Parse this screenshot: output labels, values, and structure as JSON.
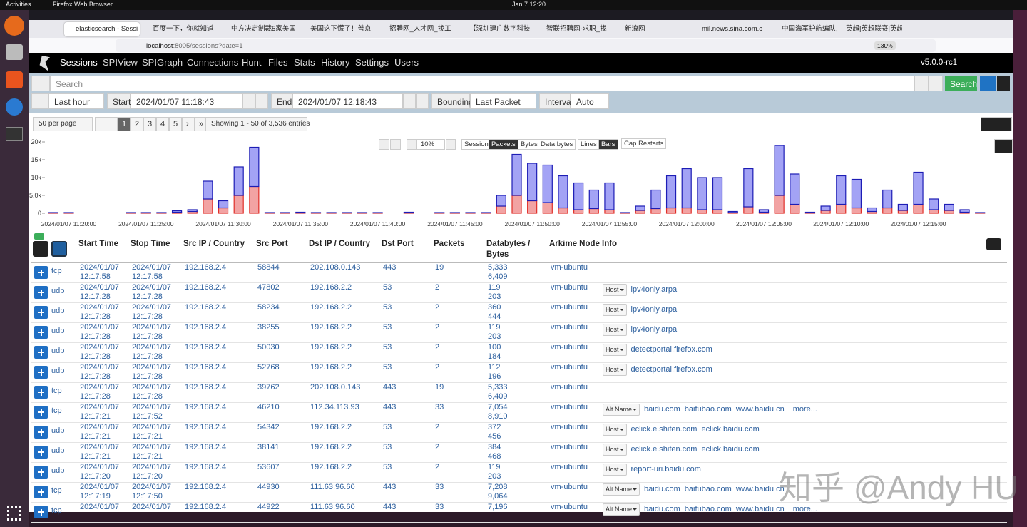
{
  "os_bar": {
    "activities": "Activities",
    "app": "Firefox Web Browser",
    "clock": "Jan 7  12:20"
  },
  "tabs": [
    "elasticsearch - Sessi",
    "百度一下，你就知道",
    "中方决定制裁5家美国",
    "美国这下慌了！普京",
    "招聘网_人才网_找工",
    "【深圳建广数字科技",
    "智联招聘网-求职_找",
    "新浪网",
    "mil.news.sina.com.c",
    "中国海军护航编队,",
    "英超|英超联赛|英超"
  ],
  "url": {
    "host": "localhost",
    "rest": ":8005/sessions?date=1",
    "zoom": "130%"
  },
  "nav": {
    "items": [
      "Sessions",
      "SPIView",
      "SPIGraph",
      "Connections",
      "Hunt",
      "Files",
      "Stats",
      "History",
      "Settings",
      "Users"
    ],
    "version": "v5.0.0-rc1"
  },
  "search": {
    "placeholder": "Search",
    "button": "Search"
  },
  "time": {
    "range": "Last hour",
    "start_label": "Start",
    "start": "2024/01/07 11:18:43",
    "end_label": "End",
    "end": "2024/01/07 12:18:43",
    "bounding_label": "Bounding",
    "bounding": "Last Packet",
    "interval_label": "Interval",
    "interval": "Auto"
  },
  "paging": {
    "per_page": "50 per page",
    "pages": [
      "1",
      "2",
      "3",
      "4",
      "5",
      "›",
      "»"
    ],
    "showing": "Showing 1 - 50 of 3,536 entries"
  },
  "graph_controls": {
    "zoom": "10%",
    "types": [
      "Session",
      "Packets",
      "Bytes",
      "Data bytes"
    ],
    "modes": [
      "Lines",
      "Bars"
    ],
    "cap": "Cap Restarts"
  },
  "chart_data": {
    "type": "stacked-bar",
    "categories": [
      null,
      "2024/01/07 11:20:00",
      null,
      null,
      null,
      null,
      "2024/01/07 11:25:00",
      null,
      null,
      null,
      null,
      "2024/01/07 11:30:00",
      null,
      null,
      null,
      null,
      "2024/01/07 11:35:00",
      null,
      null,
      null,
      null,
      "2024/01/07 11:40:00",
      null,
      null,
      null,
      null,
      "2024/01/07 11:45:00",
      null,
      null,
      null,
      null,
      "2024/01/07 11:50:00",
      null,
      null,
      null,
      null,
      "2024/01/07 11:55:00",
      null,
      null,
      null,
      null,
      "2024/01/07 12:00:00",
      null,
      null,
      null,
      null,
      "2024/01/07 12:05:00",
      null,
      null,
      null,
      null,
      "2024/01/07 12:10:00",
      null,
      null,
      null,
      null,
      "2024/01/07 12:15:00",
      null,
      null,
      null,
      null
    ],
    "series": [
      {
        "color": "#f2a3a3",
        "values": [
          100,
          100,
          0,
          0,
          0,
          100,
          100,
          100,
          300,
          500,
          4000,
          1500,
          5000,
          7500,
          100,
          100,
          100,
          100,
          100,
          100,
          100,
          100,
          0,
          100,
          0,
          100,
          100,
          100,
          100,
          2000,
          5000,
          3500,
          3000,
          1500,
          1000,
          1300,
          1000,
          100,
          800,
          1300,
          1500,
          1500,
          1000,
          1000,
          200,
          1800,
          300,
          5000,
          2500,
          100,
          800,
          2500,
          1500,
          500,
          1500,
          800,
          2500,
          1000,
          800,
          300,
          100
        ]
      },
      {
        "color": "#a3a3f5",
        "values": [
          100,
          100,
          0,
          0,
          0,
          100,
          100,
          100,
          400,
          500,
          5000,
          2000,
          8000,
          11000,
          100,
          100,
          200,
          100,
          100,
          100,
          100,
          100,
          0,
          200,
          0,
          100,
          100,
          100,
          100,
          3000,
          11500,
          10500,
          10500,
          9000,
          7500,
          5200,
          7500,
          100,
          1200,
          5200,
          9000,
          11000,
          9000,
          9000,
          300,
          10700,
          700,
          14000,
          8500,
          200,
          1200,
          8000,
          8000,
          1000,
          5000,
          1700,
          9000,
          3000,
          1700,
          700,
          100
        ]
      }
    ],
    "ylim": [
      0,
      20000
    ],
    "yticks": [
      0,
      {
        "value": 5000,
        "label": "5.0k"
      },
      {
        "value": 10000,
        "label": "10k"
      },
      {
        "value": 15000,
        "label": "15k"
      },
      {
        "value": 20000,
        "label": "20k"
      }
    ]
  },
  "table": {
    "headers": [
      "Start Time",
      "Stop Time",
      "Src IP / Country",
      "Src Port",
      "Dst IP / Country",
      "Dst Port",
      "Packets",
      "Databytes / Bytes",
      "Arkime Node",
      "Info"
    ],
    "rows": [
      {
        "proto": "tcp",
        "start": "2024/01/07 12:17:58",
        "stop": "2024/01/07 12:17:58",
        "src_ip": "192.168.2.4",
        "src_port": "58844",
        "dst_ip": "202.108.0.143",
        "dst_port": "443",
        "packets": "19",
        "databytes": "5,333",
        "bytes": "6,409",
        "node": "vm-ubuntu"
      },
      {
        "proto": "udp",
        "start": "2024/01/07 12:17:28",
        "stop": "2024/01/07 12:17:28",
        "src_ip": "192.168.2.4",
        "src_port": "47802",
        "dst_ip": "192.168.2.2",
        "dst_port": "53",
        "packets": "2",
        "databytes": "119",
        "bytes": "203",
        "node": "vm-ubuntu",
        "info_tag": "Host",
        "info": [
          "ipv4only.arpa"
        ]
      },
      {
        "proto": "udp",
        "start": "2024/01/07 12:17:28",
        "stop": "2024/01/07 12:17:28",
        "src_ip": "192.168.2.4",
        "src_port": "58234",
        "dst_ip": "192.168.2.2",
        "dst_port": "53",
        "packets": "2",
        "databytes": "360",
        "bytes": "444",
        "node": "vm-ubuntu",
        "info_tag": "Host",
        "info": [
          "ipv4only.arpa"
        ]
      },
      {
        "proto": "udp",
        "start": "2024/01/07 12:17:28",
        "stop": "2024/01/07 12:17:28",
        "src_ip": "192.168.2.4",
        "src_port": "38255",
        "dst_ip": "192.168.2.2",
        "dst_port": "53",
        "packets": "2",
        "databytes": "119",
        "bytes": "203",
        "node": "vm-ubuntu",
        "info_tag": "Host",
        "info": [
          "ipv4only.arpa"
        ]
      },
      {
        "proto": "udp",
        "start": "2024/01/07 12:17:28",
        "stop": "2024/01/07 12:17:28",
        "src_ip": "192.168.2.4",
        "src_port": "50030",
        "dst_ip": "192.168.2.2",
        "dst_port": "53",
        "packets": "2",
        "databytes": "100",
        "bytes": "184",
        "node": "vm-ubuntu",
        "info_tag": "Host",
        "info": [
          "detectportal.firefox.com"
        ]
      },
      {
        "proto": "udp",
        "start": "2024/01/07 12:17:28",
        "stop": "2024/01/07 12:17:28",
        "src_ip": "192.168.2.4",
        "src_port": "52768",
        "dst_ip": "192.168.2.2",
        "dst_port": "53",
        "packets": "2",
        "databytes": "112",
        "bytes": "196",
        "node": "vm-ubuntu",
        "info_tag": "Host",
        "info": [
          "detectportal.firefox.com"
        ]
      },
      {
        "proto": "tcp",
        "start": "2024/01/07 12:17:28",
        "stop": "2024/01/07 12:17:28",
        "src_ip": "192.168.2.4",
        "src_port": "39762",
        "dst_ip": "202.108.0.143",
        "dst_port": "443",
        "packets": "19",
        "databytes": "5,333",
        "bytes": "6,409",
        "node": "vm-ubuntu"
      },
      {
        "proto": "tcp",
        "start": "2024/01/07 12:17:21",
        "stop": "2024/01/07 12:17:52",
        "src_ip": "192.168.2.4",
        "src_port": "46210",
        "dst_ip": "112.34.113.93",
        "dst_port": "443",
        "packets": "33",
        "databytes": "7,054",
        "bytes": "8,910",
        "node": "vm-ubuntu",
        "info_tag": "Alt Name",
        "info": [
          "baidu.com",
          "baifubao.com",
          "www.baidu.cn"
        ],
        "more": "more..."
      },
      {
        "proto": "udp",
        "start": "2024/01/07 12:17:21",
        "stop": "2024/01/07 12:17:21",
        "src_ip": "192.168.2.4",
        "src_port": "54342",
        "dst_ip": "192.168.2.2",
        "dst_port": "53",
        "packets": "2",
        "databytes": "372",
        "bytes": "456",
        "node": "vm-ubuntu",
        "info_tag": "Host",
        "info": [
          "eclick.e.shifen.com",
          "eclick.baidu.com"
        ]
      },
      {
        "proto": "udp",
        "start": "2024/01/07 12:17:21",
        "stop": "2024/01/07 12:17:21",
        "src_ip": "192.168.2.4",
        "src_port": "38141",
        "dst_ip": "192.168.2.2",
        "dst_port": "53",
        "packets": "2",
        "databytes": "384",
        "bytes": "468",
        "node": "vm-ubuntu",
        "info_tag": "Host",
        "info": [
          "eclick.e.shifen.com",
          "eclick.baidu.com"
        ]
      },
      {
        "proto": "udp",
        "start": "2024/01/07 12:17:20",
        "stop": "2024/01/07 12:17:20",
        "src_ip": "192.168.2.4",
        "src_port": "53607",
        "dst_ip": "192.168.2.2",
        "dst_port": "53",
        "packets": "2",
        "databytes": "119",
        "bytes": "203",
        "node": "vm-ubuntu",
        "info_tag": "Host",
        "info": [
          "report-uri.baidu.com"
        ]
      },
      {
        "proto": "tcp",
        "start": "2024/01/07 12:17:19",
        "stop": "2024/01/07 12:17:50",
        "src_ip": "192.168.2.4",
        "src_port": "44930",
        "dst_ip": "111.63.96.60",
        "dst_port": "443",
        "packets": "33",
        "databytes": "7,208",
        "bytes": "9,064",
        "node": "vm-ubuntu",
        "info_tag": "Alt Name",
        "info": [
          "baidu.com",
          "baifubao.com",
          "www.baidu.cn"
        ]
      },
      {
        "proto": "tcp",
        "start": "2024/01/07",
        "stop": "2024/01/07",
        "src_ip": "192.168.2.4",
        "src_port": "44922",
        "dst_ip": "111.63.96.60",
        "dst_port": "443",
        "packets": "33",
        "databytes": "7,196",
        "node": "vm-ubuntu",
        "info_tag": "Alt Name",
        "info": [
          "baidu.com",
          "baifubao.com",
          "www.baidu.cn"
        ],
        "more": "more..."
      }
    ]
  },
  "watermark": "知乎 @Andy HU"
}
